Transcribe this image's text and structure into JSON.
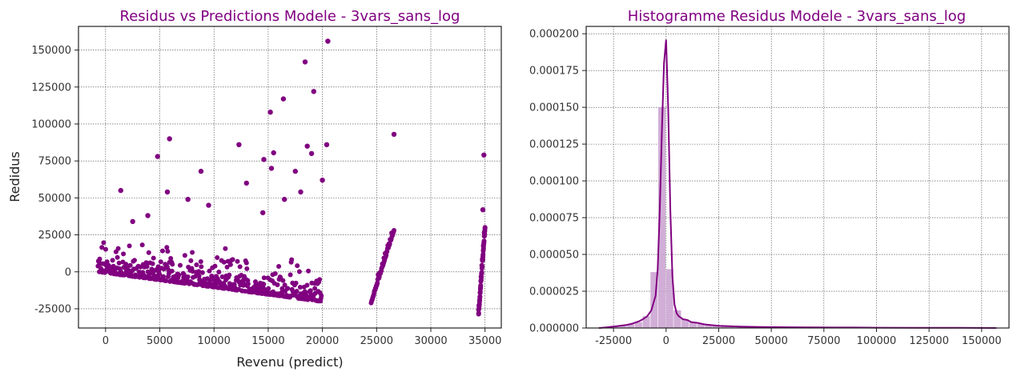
{
  "colors": {
    "accent": "#800080",
    "hist_fill": "#c9a0d0"
  },
  "chart_data": [
    {
      "type": "scatter",
      "title": "Residus vs Predictions Modele - 3vars_sans_log",
      "xlabel": "Revenu (predict)",
      "ylabel": "Redidus",
      "xlim": [
        -2500,
        36500
      ],
      "ylim": [
        -38000,
        166000
      ],
      "xticks": [
        0,
        5000,
        10000,
        15000,
        20000,
        25000,
        30000,
        35000
      ],
      "yticks": [
        -25000,
        0,
        25000,
        50000,
        75000,
        100000,
        125000,
        150000
      ],
      "grid": true,
      "color": "#800080",
      "outliers": [
        [
          20500,
          156000
        ],
        [
          18400,
          142000
        ],
        [
          19200,
          122000
        ],
        [
          16400,
          117000
        ],
        [
          15200,
          108000
        ],
        [
          5900,
          90000
        ],
        [
          26600,
          93000
        ],
        [
          12300,
          86000
        ],
        [
          18600,
          85000
        ],
        [
          20400,
          86000
        ],
        [
          15500,
          80500
        ],
        [
          19000,
          80000
        ],
        [
          34900,
          79000
        ],
        [
          4800,
          78000
        ],
        [
          14600,
          76000
        ],
        [
          8800,
          68000
        ],
        [
          15300,
          70000
        ],
        [
          17500,
          68000
        ],
        [
          13000,
          60000
        ],
        [
          1400,
          55000
        ],
        [
          5700,
          54000
        ],
        [
          7600,
          49000
        ],
        [
          16500,
          49000
        ],
        [
          18000,
          54000
        ],
        [
          20000,
          62000
        ],
        [
          34800,
          42000
        ],
        [
          3900,
          38000
        ],
        [
          9500,
          45000
        ],
        [
          2500,
          34000
        ],
        [
          14500,
          40000
        ]
      ],
      "clusters": [
        {
          "x": [
            -700,
            19900
          ],
          "lo_start": 0,
          "lo_end": -20000,
          "spread": 18000,
          "n": 520
        },
        {
          "x": [
            24500,
            26600
          ],
          "lo_start": -21000,
          "lo_end": 28000,
          "spread": 3000,
          "n": 60
        },
        {
          "x": [
            34400,
            35000
          ],
          "lo_start": -30000,
          "lo_end": 30000,
          "spread": 4000,
          "n": 60
        }
      ]
    },
    {
      "type": "bar",
      "title": "Histogramme Residus Modele - 3vars_sans_log",
      "xlim": [
        -38000,
        163000
      ],
      "ylim": [
        0,
        0.000205
      ],
      "xticks": [
        -25000,
        0,
        25000,
        50000,
        75000,
        100000,
        125000,
        150000
      ],
      "yticks": [
        0,
        2.5e-05,
        5e-05,
        7.5e-05,
        0.0001,
        0.000125,
        0.00015,
        0.000175,
        0.0002
      ],
      "ytick_labels": [
        "0.000000",
        "0.000025",
        "0.000050",
        "0.000075",
        "0.000100",
        "0.000125",
        "0.000150",
        "0.000175",
        "0.000200"
      ],
      "grid": true,
      "color": "#800080",
      "bin_width": 3700,
      "bins_x": [
        -31500,
        -27800,
        -24100,
        -20400,
        -16700,
        -13000,
        -9300,
        -5600,
        -1900,
        1800,
        5500,
        9200,
        12900,
        16600,
        20300,
        24000,
        27700,
        31400,
        35100,
        38800,
        42500,
        46200,
        49900,
        53600,
        57300,
        61000,
        64700,
        68400,
        72100,
        75800,
        79500,
        83200,
        86900,
        90600,
        94300,
        98000,
        101700,
        105400,
        109100,
        112800,
        116500,
        120200,
        123900,
        127600,
        131300,
        135000,
        138700,
        142400,
        146100,
        149800,
        153500
      ],
      "bins_y": [
        2e-07,
        4e-07,
        1e-06,
        1.5e-06,
        2.5e-06,
        4e-06,
        8e-06,
        3.8e-05,
        0.00015,
        4e-05,
        1.2e-05,
        6e-06,
        4e-06,
        3e-06,
        2.2e-06,
        1.7e-06,
        1.2e-06,
        1e-06,
        8e-07,
        6e-07,
        5e-07,
        4e-07,
        3e-07,
        3e-07,
        2e-07,
        2e-07,
        2e-07,
        3e-07,
        1e-07,
        1e-07,
        1e-07,
        1e-07,
        1e-07,
        1e-07,
        1e-07,
        1e-07,
        1e-07,
        1e-07,
        1e-07,
        1e-07,
        1e-07,
        1e-07,
        1e-07,
        1e-07,
        1e-07,
        1e-07,
        1e-07,
        1e-07,
        1e-07,
        1e-07,
        1e-07
      ],
      "kde_x": [
        -32000,
        -28000,
        -25000,
        -22000,
        -19000,
        -16000,
        -13000,
        -11000,
        -9000,
        -7000,
        -5000,
        -4000,
        -3000,
        -2000,
        -1000,
        0,
        1000,
        2000,
        3000,
        4000,
        5000,
        6000,
        7000,
        8000,
        10000,
        12000,
        15000,
        18000,
        21000,
        25000,
        30000,
        35000,
        40000,
        45000,
        50000,
        60000,
        70000,
        80000,
        90000,
        100000,
        120000,
        140000,
        157000
      ],
      "kde_y": [
        0,
        5e-07,
        1e-06,
        1.5e-06,
        2e-06,
        3e-06,
        4.5e-06,
        6e-06,
        8e-06,
        1.2e-05,
        2.2e-05,
        4e-05,
        8e-05,
        0.000135,
        0.00018,
        0.000196,
        0.00015,
        8e-05,
        3.5e-05,
        1.6e-05,
        1e-05,
        8e-06,
        7e-06,
        6e-06,
        5.5e-06,
        4e-06,
        3.5e-06,
        2.5e-06,
        2e-06,
        1.5e-06,
        1.2e-06,
        1e-06,
        8e-07,
        7e-07,
        6e-07,
        5e-07,
        4e-07,
        3e-07,
        3e-07,
        2e-07,
        1e-07,
        1e-07,
        0
      ]
    }
  ]
}
